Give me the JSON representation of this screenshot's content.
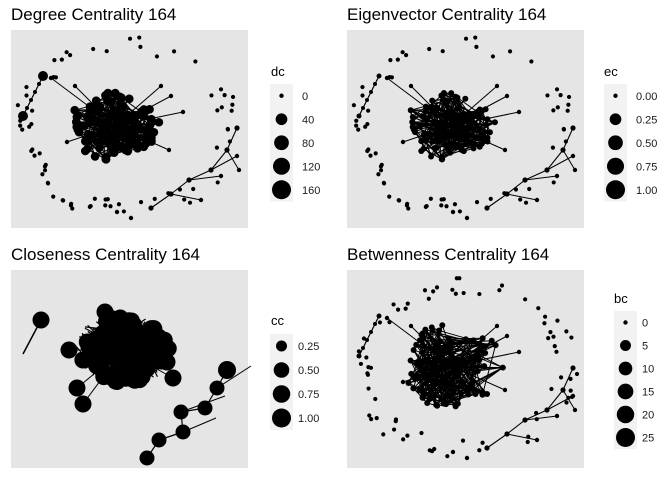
{
  "chart_data": [
    {
      "type": "network",
      "title": "Degree Centrality 164",
      "legend": {
        "title": "dc",
        "placement": "right",
        "breaks": [
          0,
          40,
          80,
          120,
          160
        ],
        "labels": [
          "0",
          "40",
          "80",
          "120",
          "160"
        ]
      },
      "grid": false,
      "background": "#e5e5e5"
    },
    {
      "type": "network",
      "title": "Eigenvector Centrality 164",
      "legend": {
        "title": "ec",
        "placement": "right",
        "breaks": [
          0,
          0.25,
          0.5,
          0.75,
          1.0
        ],
        "labels": [
          "0.00",
          "0.25",
          "0.50",
          "0.75",
          "1.00"
        ]
      },
      "grid": false,
      "background": "#e5e5e5"
    },
    {
      "type": "network",
      "title": "Closeness Centrality 164",
      "legend": {
        "title": "cc",
        "placement": "right",
        "breaks": [
          0.25,
          0.5,
          0.75,
          1.0
        ],
        "labels": [
          "0.25",
          "0.50",
          "0.75",
          "1.00"
        ]
      },
      "grid": false,
      "background": "#e5e5e5"
    },
    {
      "type": "network",
      "title": "Betwenness Centrality 164",
      "legend": {
        "title": "bc",
        "placement": "right",
        "breaks": [
          0,
          5,
          10,
          15,
          20,
          25
        ],
        "labels": [
          "0",
          "5",
          "10",
          "15",
          "20",
          "25"
        ]
      },
      "grid": false,
      "background": "#e5e5e5"
    }
  ],
  "colors": {
    "panel_background": "#e5e5e5",
    "legend_key_background": "#f2f2f2",
    "point": "#000000",
    "edge": "#000000"
  }
}
